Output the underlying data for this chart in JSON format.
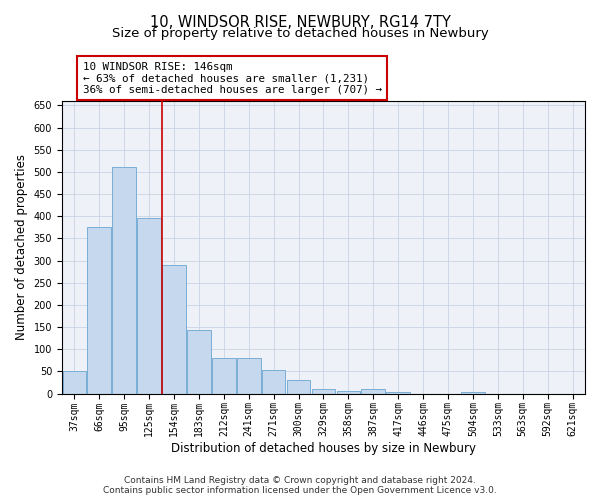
{
  "title1": "10, WINDSOR RISE, NEWBURY, RG14 7TY",
  "title2": "Size of property relative to detached houses in Newbury",
  "xlabel": "Distribution of detached houses by size in Newbury",
  "ylabel": "Number of detached properties",
  "categories": [
    "37sqm",
    "66sqm",
    "95sqm",
    "125sqm",
    "154sqm",
    "183sqm",
    "212sqm",
    "241sqm",
    "271sqm",
    "300sqm",
    "329sqm",
    "358sqm",
    "387sqm",
    "417sqm",
    "446sqm",
    "475sqm",
    "504sqm",
    "533sqm",
    "563sqm",
    "592sqm",
    "621sqm"
  ],
  "values": [
    50,
    375,
    512,
    395,
    290,
    143,
    81,
    81,
    54,
    30,
    11,
    6,
    11,
    4,
    0,
    0,
    4,
    0,
    0,
    0,
    0
  ],
  "bar_color": "#c5d8ed",
  "bar_edge_color": "#7aaed6",
  "vline_x_index": 3.5,
  "vline_color": "#cc0000",
  "annotation_text": "10 WINDSOR RISE: 146sqm\n← 63% of detached houses are smaller (1,231)\n36% of semi-detached houses are larger (707) →",
  "annotation_box_color": "#cc0000",
  "ylim": [
    0,
    660
  ],
  "yticks": [
    0,
    50,
    100,
    150,
    200,
    250,
    300,
    350,
    400,
    450,
    500,
    550,
    600,
    650
  ],
  "grid_color": "#c8d4e3",
  "bg_color": "#eef2f8",
  "footer1": "Contains HM Land Registry data © Crown copyright and database right 2024.",
  "footer2": "Contains public sector information licensed under the Open Government Licence v3.0.",
  "title1_fontsize": 10.5,
  "title2_fontsize": 9.5,
  "xlabel_fontsize": 8.5,
  "ylabel_fontsize": 8.5,
  "tick_fontsize": 7,
  "ann_fontsize": 7.8,
  "footer_fontsize": 6.5
}
